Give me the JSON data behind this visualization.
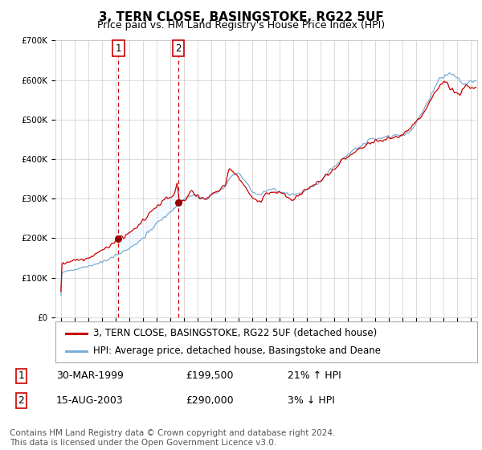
{
  "title": "3, TERN CLOSE, BASINGSTOKE, RG22 5UF",
  "subtitle": "Price paid vs. HM Land Registry's House Price Index (HPI)",
  "legend_line1": "3, TERN CLOSE, BASINGSTOKE, RG22 5UF (detached house)",
  "legend_line2": "HPI: Average price, detached house, Basingstoke and Deane",
  "footer": "Contains HM Land Registry data © Crown copyright and database right 2024.\nThis data is licensed under the Open Government Licence v3.0.",
  "sale1_date": "30-MAR-1999",
  "sale1_price": "£199,500",
  "sale1_hpi": "21% ↑ HPI",
  "sale1_year": 1999.22,
  "sale1_value": 199500,
  "sale2_date": "15-AUG-2003",
  "sale2_price": "£290,000",
  "sale2_hpi": "3% ↓ HPI",
  "sale2_year": 2003.62,
  "sale2_value": 290000,
  "ylim": [
    0,
    700000
  ],
  "yticks": [
    0,
    100000,
    200000,
    300000,
    400000,
    500000,
    600000,
    700000
  ],
  "ytick_labels": [
    "£0",
    "£100K",
    "£200K",
    "£300K",
    "£400K",
    "£500K",
    "£600K",
    "£700K"
  ],
  "red_line_color": "#cc0000",
  "blue_line_color": "#7aaed6",
  "shade_color": "#ddeeff",
  "marker_color": "#990000",
  "vline_color": "#cc0000",
  "box_color": "#cc0000",
  "grid_color": "#cccccc",
  "bg_color": "#ffffff",
  "title_fontsize": 11,
  "subtitle_fontsize": 9,
  "axis_fontsize": 7.5,
  "legend_fontsize": 8.5,
  "footer_fontsize": 7.5
}
